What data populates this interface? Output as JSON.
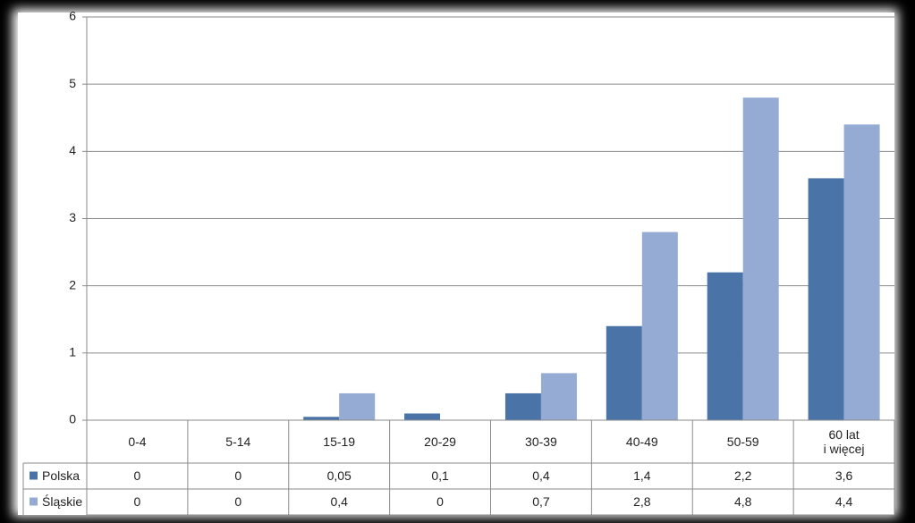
{
  "chart_data": {
    "type": "bar",
    "categories": [
      "0-4",
      "5-14",
      "15-19",
      "20-29",
      "30-39",
      "40-49",
      "50-59",
      "60 lat\ni więcej"
    ],
    "series": [
      {
        "name": "Polska",
        "color": "#4a74a8",
        "values": [
          0,
          0,
          0.05,
          0.1,
          0.4,
          1.4,
          2.2,
          3.6
        ],
        "value_labels": [
          "0",
          "0",
          "0,05",
          "0,1",
          "0,4",
          "1,4",
          "2,2",
          "3,6"
        ]
      },
      {
        "name": "Śląskie",
        "color": "#95abd4",
        "values": [
          0,
          0,
          0.4,
          0,
          0.7,
          2.8,
          4.8,
          4.4
        ],
        "value_labels": [
          "0",
          "0",
          "0,4",
          "0",
          "0,7",
          "2,8",
          "4,8",
          "4,4"
        ]
      }
    ],
    "ylim": [
      0,
      6
    ],
    "yticks": [
      0,
      1,
      2,
      3,
      4,
      5,
      6
    ],
    "grid": true,
    "data_table": true
  }
}
